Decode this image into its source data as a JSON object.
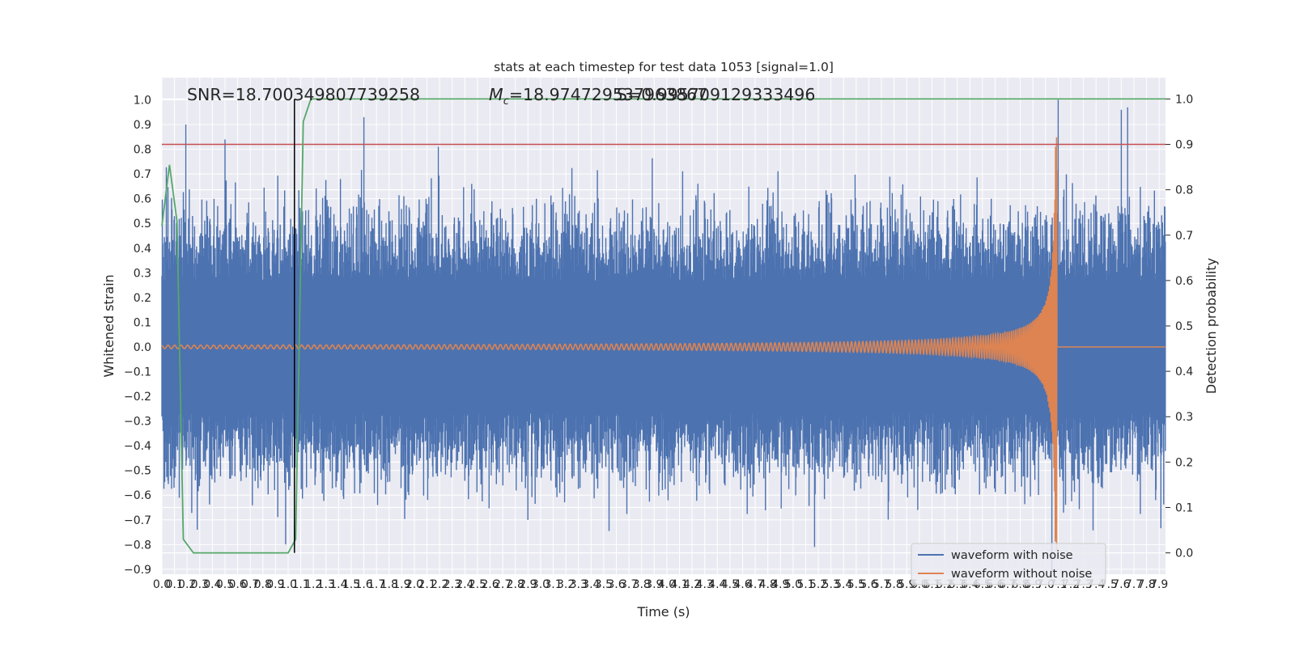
{
  "chart_data": {
    "type": "line",
    "title": "stats at each timestep for test data 1053 [signal=1.0]",
    "xlabel": "Time (s)",
    "ylabel": "Whitened strain",
    "y2label": "Detection probability",
    "annotations": {
      "snr": "SNR=18.700349807739258",
      "mc_prefix": "M",
      "mc_sub": "c",
      "mc_value": "=18.974729537963867",
      "overlap": "S=0.995709129333496"
    },
    "xlim": [
      0.0,
      7.95
    ],
    "ylim": [
      -0.92,
      1.09
    ],
    "y2lim": [
      -0.047,
      1.047
    ],
    "x_ticks": [
      "0.0",
      "0.1",
      "0.2",
      "0.3",
      "0.4",
      "0.5",
      "0.6",
      "0.7",
      "0.8",
      "0.9",
      "1.0",
      "1.1",
      "1.2",
      "1.3",
      "1.4",
      "1.5",
      "1.6",
      "1.7",
      "1.8",
      "1.9",
      "2.0",
      "2.1",
      "2.2",
      "2.3",
      "2.4",
      "2.5",
      "2.6",
      "2.7",
      "2.8",
      "2.9",
      "3.0",
      "3.1",
      "3.2",
      "3.3",
      "3.4",
      "3.5",
      "3.6",
      "3.7",
      "3.8",
      "3.9",
      "4.0",
      "4.1",
      "4.2",
      "4.3",
      "4.4",
      "4.5",
      "4.6",
      "4.7",
      "4.8",
      "4.9",
      "5.0",
      "5.1",
      "5.2",
      "5.3",
      "5.4",
      "5.5",
      "5.6",
      "5.7",
      "5.8",
      "5.9",
      "6.0",
      "6.1",
      "6.2",
      "6.3",
      "6.4",
      "6.5",
      "6.6",
      "6.7",
      "6.8",
      "6.9",
      "7.0",
      "7.1",
      "7.2",
      "7.3",
      "7.4",
      "7.5",
      "7.6",
      "7.7",
      "7.8",
      "7.9"
    ],
    "y_ticks": [
      "1.0",
      "0.9",
      "0.8",
      "0.7",
      "0.6",
      "0.5",
      "0.4",
      "0.3",
      "0.2",
      "0.1",
      "0.0",
      "−0.1",
      "−0.2",
      "−0.3",
      "−0.4",
      "−0.5",
      "−0.6",
      "−0.7",
      "−0.8",
      "−0.9"
    ],
    "y2_ticks": [
      "1.0",
      "0.9",
      "0.8",
      "0.7",
      "0.6",
      "0.5",
      "0.4",
      "0.3",
      "0.2",
      "0.1",
      "0.0"
    ],
    "grid": true,
    "legend_position": "lower-right",
    "series": [
      {
        "name": "waveform with noise",
        "color": "#4c72b0",
        "kind": "noise-band",
        "notable_peaks": [
          [
            0.19,
            0.9
          ],
          [
            0.5,
            0.84
          ],
          [
            1.6,
            0.93
          ],
          [
            2.19,
            0.81
          ],
          [
            7.1,
            1.0
          ],
          [
            7.6,
            0.96
          ],
          [
            7.65,
            0.97
          ],
          [
            0.98,
            -0.8
          ],
          [
            5.17,
            -0.81
          ],
          [
            7.05,
            -0.91
          ],
          [
            0.28,
            -0.74
          ]
        ]
      },
      {
        "name": "waveform without noise",
        "color": "#dd8452",
        "kind": "chirp",
        "merger_time": 7.09,
        "peak_amplitude": 0.9,
        "early_amplitude": 0.007
      },
      {
        "name": "detection probability",
        "color": "#55a868",
        "axis": "right",
        "x": [
          0.0,
          0.06,
          0.12,
          0.17,
          0.25,
          1.0,
          1.06,
          1.12,
          1.18,
          7.95
        ],
        "y": [
          0.72,
          0.855,
          0.73,
          0.03,
          0.0,
          0.0,
          0.03,
          0.95,
          1.0,
          1.0
        ]
      }
    ],
    "lines": [
      {
        "orientation": "horizontal",
        "axis": "right",
        "value": 0.9,
        "color": "#c44e52"
      },
      {
        "orientation": "vertical",
        "value": 1.05,
        "color": "#000000"
      }
    ],
    "legend": [
      {
        "label": "waveform with noise",
        "color": "#4c72b0"
      },
      {
        "label": "waveform without noise",
        "color": "#dd8452"
      }
    ]
  }
}
